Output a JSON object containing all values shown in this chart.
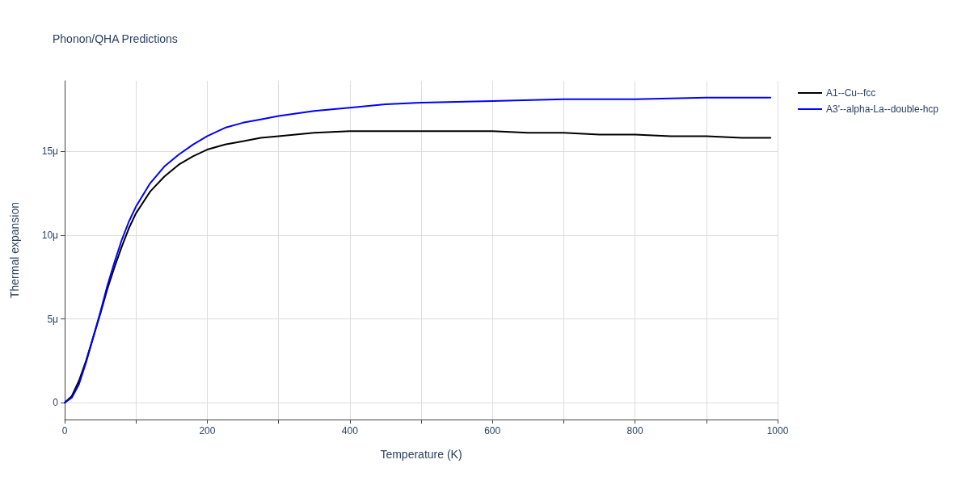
{
  "chart_data": {
    "type": "line",
    "title": "Phonon/QHA Predictions",
    "xlabel": "Temperature (K)",
    "ylabel": "Thermal expansion",
    "xlim": [
      0,
      1000
    ],
    "xticks": [
      0,
      {
        "value": 100,
        "label": null
      },
      200,
      {
        "value": 300,
        "label": null
      },
      400,
      {
        "value": 500,
        "label": null
      },
      600,
      {
        "value": 700,
        "label": null
      },
      800,
      {
        "value": 900,
        "label": null
      },
      1000
    ],
    "ylim": [
      -1,
      19.2
    ],
    "yticks": [
      0,
      {
        "value": 5,
        "label": "5μ"
      },
      {
        "value": 10,
        "label": "10μ"
      },
      {
        "value": 15,
        "label": "15μ"
      }
    ],
    "grid": true,
    "legend": "top right",
    "marker": "none",
    "line_style": "solid",
    "series": [
      {
        "name": "A1--Cu--fcc",
        "color": "#000000",
        "x": [
          0,
          10,
          20,
          30,
          40,
          50,
          60,
          70,
          80,
          90,
          100,
          120,
          140,
          160,
          180,
          200,
          225,
          250,
          275,
          300,
          350,
          400,
          450,
          500,
          550,
          600,
          650,
          700,
          750,
          800,
          850,
          900,
          950,
          990
        ],
        "values": [
          0,
          0.4,
          1.3,
          2.5,
          3.9,
          5.3,
          6.8,
          8.1,
          9.3,
          10.4,
          11.3,
          12.6,
          13.5,
          14.2,
          14.7,
          15.1,
          15.4,
          15.6,
          15.8,
          15.9,
          16.1,
          16.2,
          16.2,
          16.2,
          16.2,
          16.2,
          16.1,
          16.1,
          16,
          16,
          15.9,
          15.9,
          15.8,
          15.8
        ]
      },
      {
        "name": "A3'--alpha-La--double-hcp",
        "color": "#0000ff",
        "x": [
          0,
          10,
          20,
          30,
          40,
          50,
          60,
          70,
          80,
          90,
          100,
          120,
          140,
          160,
          180,
          200,
          225,
          250,
          275,
          300,
          350,
          400,
          450,
          500,
          600,
          700,
          800,
          900,
          990
        ],
        "values": [
          0,
          0.3,
          1.1,
          2.4,
          3.9,
          5.4,
          7,
          8.4,
          9.7,
          10.8,
          11.7,
          13.1,
          14.1,
          14.8,
          15.4,
          15.9,
          16.4,
          16.7,
          16.9,
          17.1,
          17.4,
          17.6,
          17.8,
          17.9,
          18,
          18.1,
          18.1,
          18.2,
          18.2
        ]
      }
    ]
  }
}
